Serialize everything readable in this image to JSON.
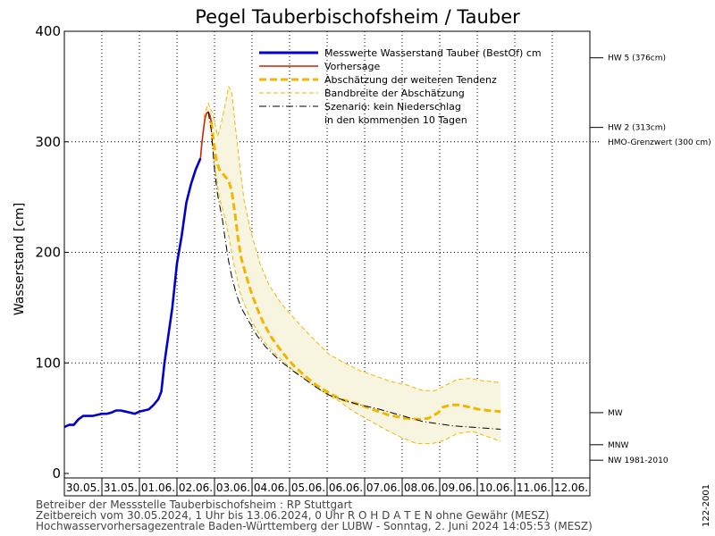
{
  "chart_data": {
    "type": "line",
    "title": "Pegel Tauberbischofsheim / Tauber",
    "ylabel": "Wasserstand [cm]",
    "ylim": [
      0,
      400
    ],
    "yticks": [
      0,
      100,
      200,
      300,
      400
    ],
    "x_categories": [
      "30.05.",
      "31.05.",
      "01.06.",
      "02.06.",
      "03.06.",
      "04.06.",
      "05.06.",
      "06.06.",
      "07.06.",
      "08.06.",
      "09.06.",
      "10.06.",
      "11.06.",
      "12.06."
    ],
    "xlim_hours": [
      1,
      337
    ],
    "grid": true,
    "legend": {
      "placement": "top-right",
      "entries": [
        {
          "label": "Messwerte Wasserstand Tauber  (BestOf)   cm",
          "color": "#0000cc",
          "style": "solid-thick"
        },
        {
          "label": "Vorhersage",
          "color": "#cc2200",
          "style": "solid"
        },
        {
          "label": "Abschätzung der weiteren Tendenz",
          "color": "#f2b600",
          "style": "dashed-thick"
        },
        {
          "label": "Bandbreite der Abschätzung",
          "color": "#f2b600",
          "style": "dashed-thin"
        },
        {
          "label": "Szenario: kein Niederschlag",
          "color": "#000000",
          "style": "dashdot"
        },
        {
          "label": "in den kommenden 10 Tagen",
          "color": "",
          "style": "none"
        }
      ]
    },
    "reference_lines": [
      {
        "label": "HW 5 (376cm)",
        "value": 376,
        "line": "solid"
      },
      {
        "label": "HW 2 (313cm)",
        "value": 313,
        "line": "solid"
      },
      {
        "label": "HMO-Grenzwert (300 cm)",
        "value": 300,
        "line": "dotted"
      },
      {
        "label": "MW",
        "value": 55,
        "line": "solid"
      },
      {
        "label": "MNW",
        "value": 26,
        "line": "solid"
      },
      {
        "label": "NW 1981-2010",
        "value": 12,
        "line": "solid"
      }
    ],
    "series": [
      {
        "name": "Messwerte Wasserstand Tauber  (BestOf)   cm",
        "color": "#0000cc",
        "points": [
          [
            1,
            42
          ],
          [
            4,
            44
          ],
          [
            7,
            44
          ],
          [
            10,
            49
          ],
          [
            13,
            52
          ],
          [
            16,
            52
          ],
          [
            19,
            52
          ],
          [
            22,
            53
          ],
          [
            25,
            54
          ],
          [
            28,
            54
          ],
          [
            31,
            55
          ],
          [
            34,
            57
          ],
          [
            37,
            57
          ],
          [
            40,
            56
          ],
          [
            43,
            55
          ],
          [
            46,
            54
          ],
          [
            49,
            56
          ],
          [
            52,
            57
          ],
          [
            55,
            58
          ],
          [
            58,
            62
          ],
          [
            61,
            67
          ],
          [
            63,
            74
          ],
          [
            65,
            100
          ],
          [
            67,
            120
          ],
          [
            70,
            150
          ],
          [
            73,
            190
          ],
          [
            76,
            215
          ],
          [
            79,
            245
          ],
          [
            82,
            262
          ],
          [
            85,
            275
          ],
          [
            88,
            285
          ]
        ]
      },
      {
        "name": "Vorhersage",
        "color": "#cc2200",
        "points": [
          [
            88,
            285
          ],
          [
            89,
            300
          ],
          [
            90,
            312
          ],
          [
            91,
            322
          ],
          [
            92,
            326
          ],
          [
            93,
            327
          ],
          [
            94,
            324
          ],
          [
            95,
            318
          ]
        ]
      },
      {
        "name": "Abschätzung der weiteren Tendenz",
        "color": "#f2b600",
        "points": [
          [
            95,
            318
          ],
          [
            96,
            305
          ],
          [
            98,
            285
          ],
          [
            100,
            275
          ],
          [
            103,
            270
          ],
          [
            106,
            265
          ],
          [
            108,
            255
          ],
          [
            110,
            236
          ],
          [
            112,
            213
          ],
          [
            114,
            195
          ],
          [
            117,
            180
          ],
          [
            120,
            166
          ],
          [
            124,
            150
          ],
          [
            128,
            137
          ],
          [
            133,
            124
          ],
          [
            138,
            114
          ],
          [
            143,
            105
          ],
          [
            148,
            97
          ],
          [
            155,
            88
          ],
          [
            162,
            80
          ],
          [
            170,
            73
          ],
          [
            178,
            67
          ],
          [
            188,
            63
          ],
          [
            198,
            58
          ],
          [
            208,
            53
          ],
          [
            218,
            50
          ],
          [
            228,
            49
          ],
          [
            234,
            50
          ],
          [
            240,
            55
          ],
          [
            243,
            60
          ],
          [
            248,
            62
          ],
          [
            254,
            62
          ],
          [
            260,
            60
          ],
          [
            266,
            58
          ],
          [
            272,
            57
          ],
          [
            280,
            56
          ]
        ]
      },
      {
        "name": "Bandbreite der Abschätzung (oben)",
        "color": "#f2b600",
        "points": [
          [
            90,
            322
          ],
          [
            93,
            335
          ],
          [
            96,
            325
          ],
          [
            99,
            305
          ],
          [
            101,
            315
          ],
          [
            104,
            335
          ],
          [
            106,
            350
          ],
          [
            108,
            345
          ],
          [
            110,
            318
          ],
          [
            113,
            280
          ],
          [
            116,
            246
          ],
          [
            120,
            220
          ],
          [
            126,
            190
          ],
          [
            132,
            170
          ],
          [
            140,
            153
          ],
          [
            150,
            137
          ],
          [
            160,
            122
          ],
          [
            170,
            108
          ],
          [
            180,
            100
          ],
          [
            190,
            93
          ],
          [
            200,
            88
          ],
          [
            210,
            83
          ],
          [
            220,
            80
          ],
          [
            230,
            75
          ],
          [
            238,
            75
          ],
          [
            245,
            80
          ],
          [
            252,
            85
          ],
          [
            260,
            86
          ],
          [
            268,
            84
          ],
          [
            275,
            83
          ],
          [
            280,
            82
          ]
        ]
      },
      {
        "name": "Bandbreite der Abschätzung (unten)",
        "color": "#f2b600",
        "points": [
          [
            95,
            305
          ],
          [
            98,
            270
          ],
          [
            100,
            250
          ],
          [
            103,
            235
          ],
          [
            106,
            215
          ],
          [
            110,
            185
          ],
          [
            114,
            160
          ],
          [
            120,
            140
          ],
          [
            128,
            120
          ],
          [
            136,
            108
          ],
          [
            146,
            95
          ],
          [
            156,
            84
          ],
          [
            166,
            74
          ],
          [
            176,
            66
          ],
          [
            186,
            56
          ],
          [
            196,
            48
          ],
          [
            206,
            40
          ],
          [
            216,
            33
          ],
          [
            226,
            27
          ],
          [
            236,
            27
          ],
          [
            244,
            30
          ],
          [
            252,
            36
          ],
          [
            262,
            38
          ],
          [
            270,
            34
          ],
          [
            280,
            29
          ]
        ]
      },
      {
        "name": "Szenario: kein Niederschlag",
        "color": "#000000",
        "points": [
          [
            93,
            327
          ],
          [
            95,
            310
          ],
          [
            97,
            275
          ],
          [
            99,
            252
          ],
          [
            102,
            230
          ],
          [
            104,
            210
          ],
          [
            106,
            192
          ],
          [
            108,
            178
          ],
          [
            111,
            162
          ],
          [
            114,
            150
          ],
          [
            118,
            140
          ],
          [
            124,
            125
          ],
          [
            130,
            114
          ],
          [
            138,
            103
          ],
          [
            146,
            94
          ],
          [
            154,
            86
          ],
          [
            162,
            78
          ],
          [
            170,
            71
          ],
          [
            180,
            66
          ],
          [
            190,
            62
          ],
          [
            200,
            59
          ],
          [
            210,
            55
          ],
          [
            220,
            51
          ],
          [
            230,
            47
          ],
          [
            240,
            45
          ],
          [
            250,
            43
          ],
          [
            260,
            42
          ],
          [
            270,
            41
          ],
          [
            280,
            40
          ]
        ]
      }
    ]
  },
  "footer": {
    "line1": "Betreiber der Messstelle Tauberbischofsheim : RP Stuttgart",
    "line2": "Zeitbereich vom 30.05.2024, 1 Uhr bis 13.06.2024, 0 Uhr    R O H D A T E N ohne Gewähr (MESZ)",
    "line3": "Hochwasservorhersagezentrale Baden-Württemberg der LUBW - Sonntag, 2. Juni 2024 14:05:53 (MESZ)"
  },
  "version_code": "122-2001"
}
